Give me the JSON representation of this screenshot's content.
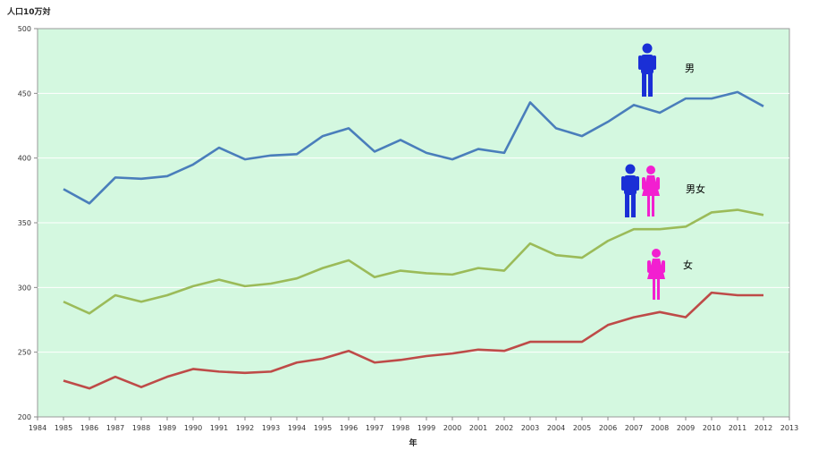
{
  "chart_data": {
    "type": "line",
    "ylabel": "人口10万対",
    "xlabel": "年",
    "ylim": [
      200,
      500
    ],
    "yticks": [
      200,
      250,
      300,
      350,
      400,
      450,
      500
    ],
    "xlim": [
      1984,
      2013
    ],
    "x_ticks": [
      1984,
      1985,
      1986,
      1987,
      1988,
      1989,
      1990,
      1991,
      1992,
      1993,
      1994,
      1995,
      1996,
      1997,
      1998,
      1999,
      2000,
      2001,
      2002,
      2003,
      2004,
      2005,
      2006,
      2007,
      2008,
      2009,
      2010,
      2011,
      2012,
      2013
    ],
    "x": [
      1985,
      1986,
      1987,
      1988,
      1989,
      1990,
      1991,
      1992,
      1993,
      1994,
      1995,
      1996,
      1997,
      1998,
      1999,
      2000,
      2001,
      2002,
      2003,
      2004,
      2005,
      2006,
      2007,
      2008,
      2009,
      2010,
      2011,
      2012
    ],
    "grid": true,
    "plot_background": "#d4f8e0",
    "series": [
      {
        "name": "男",
        "color": "#4a7ebb",
        "icon": "male-figure-icon",
        "values": [
          376,
          365,
          385,
          384,
          386,
          395,
          408,
          399,
          402,
          403,
          417,
          423,
          405,
          414,
          404,
          399,
          407,
          404,
          443,
          423,
          417,
          428,
          441,
          435,
          446,
          446,
          451,
          440
        ]
      },
      {
        "name": "男女",
        "color": "#9bbb59",
        "icon": "male-female-figures-icon",
        "values": [
          289,
          280,
          294,
          289,
          294,
          301,
          306,
          301,
          303,
          307,
          315,
          321,
          308,
          313,
          311,
          310,
          315,
          313,
          334,
          325,
          323,
          336,
          345,
          345,
          347,
          358,
          360,
          356
        ]
      },
      {
        "name": "女",
        "color": "#be4b48",
        "icon": "female-figure-icon",
        "values": [
          228,
          222,
          231,
          223,
          231,
          237,
          235,
          234,
          235,
          242,
          245,
          251,
          242,
          244,
          247,
          249,
          252,
          251,
          258,
          258,
          258,
          271,
          277,
          281,
          277,
          296,
          294,
          294
        ]
      }
    ]
  }
}
